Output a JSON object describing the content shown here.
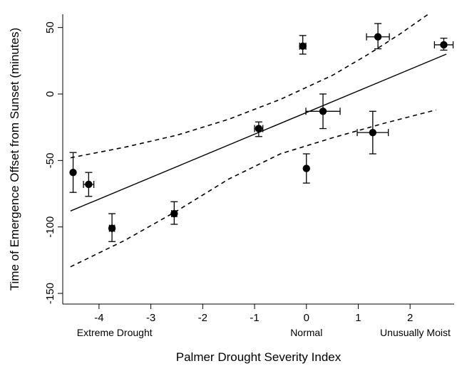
{
  "chart_data": {
    "type": "scatter",
    "xlabel": "Palmer Drought Severity Index",
    "ylabel": "Time of Emergence Offset from Sunset (minutes)",
    "xlim": [
      -4.7,
      2.85
    ],
    "ylim": [
      -158,
      60
    ],
    "x_ticks": [
      -4,
      -3,
      -2,
      -1,
      0,
      1,
      2
    ],
    "y_ticks": [
      50,
      0,
      -50,
      -100,
      -150
    ],
    "category_labels": [
      {
        "x": -3.7,
        "text": "Extreme Drought"
      },
      {
        "x": 0,
        "text": "Normal"
      },
      {
        "x": 2.1,
        "text": "Unusually Moist"
      }
    ],
    "points": [
      {
        "x": -4.5,
        "y": -59,
        "y_low": -74,
        "y_high": -44,
        "x_err": 0
      },
      {
        "x": -4.2,
        "y": -68,
        "y_low": -77,
        "y_high": -59,
        "x_err": 0.1
      },
      {
        "x": -3.75,
        "y": -101,
        "y_low": -111,
        "y_high": -90,
        "x_err": 0.05
      },
      {
        "x": -2.55,
        "y": -90,
        "y_low": -98,
        "y_high": -81,
        "x_err": 0.05
      },
      {
        "x": -0.92,
        "y": -26,
        "y_low": -32,
        "y_high": -21,
        "x_err": 0.08
      },
      {
        "x": -0.07,
        "y": 36,
        "y_low": 30,
        "y_high": 44,
        "x_err": 0.06
      },
      {
        "x": 0.0,
        "y": -56,
        "y_low": -67,
        "y_high": -45,
        "x_err": 0
      },
      {
        "x": 0.32,
        "y": -13,
        "y_low": -26,
        "y_high": 0,
        "x_err": 0.33
      },
      {
        "x": 1.28,
        "y": -29,
        "y_low": -45,
        "y_high": -13,
        "x_err": 0.3
      },
      {
        "x": 1.38,
        "y": 43,
        "y_low": 34,
        "y_high": 53,
        "x_err": 0.22
      },
      {
        "x": 2.65,
        "y": 37,
        "y_low": 33,
        "y_high": 42,
        "x_err": 0.18
      }
    ],
    "fit_line": [
      {
        "x": -4.55,
        "y": -88
      },
      {
        "x": 2.7,
        "y": 30
      }
    ],
    "upper_band": [
      {
        "x": -4.55,
        "y": -48
      },
      {
        "x": -3.5,
        "y": -40
      },
      {
        "x": -2.5,
        "y": -31
      },
      {
        "x": -1.5,
        "y": -19
      },
      {
        "x": -0.5,
        "y": -4
      },
      {
        "x": 0.5,
        "y": 14
      },
      {
        "x": 1.2,
        "y": 30
      },
      {
        "x": 1.8,
        "y": 45
      },
      {
        "x": 2.35,
        "y": 60
      }
    ],
    "lower_band": [
      {
        "x": -4.55,
        "y": -130
      },
      {
        "x": -3.5,
        "y": -110
      },
      {
        "x": -2.5,
        "y": -88
      },
      {
        "x": -1.5,
        "y": -64
      },
      {
        "x": -0.5,
        "y": -45
      },
      {
        "x": 0.5,
        "y": -33
      },
      {
        "x": 1.5,
        "y": -22
      },
      {
        "x": 2.5,
        "y": -12
      }
    ],
    "legend": "none",
    "grid": false
  }
}
